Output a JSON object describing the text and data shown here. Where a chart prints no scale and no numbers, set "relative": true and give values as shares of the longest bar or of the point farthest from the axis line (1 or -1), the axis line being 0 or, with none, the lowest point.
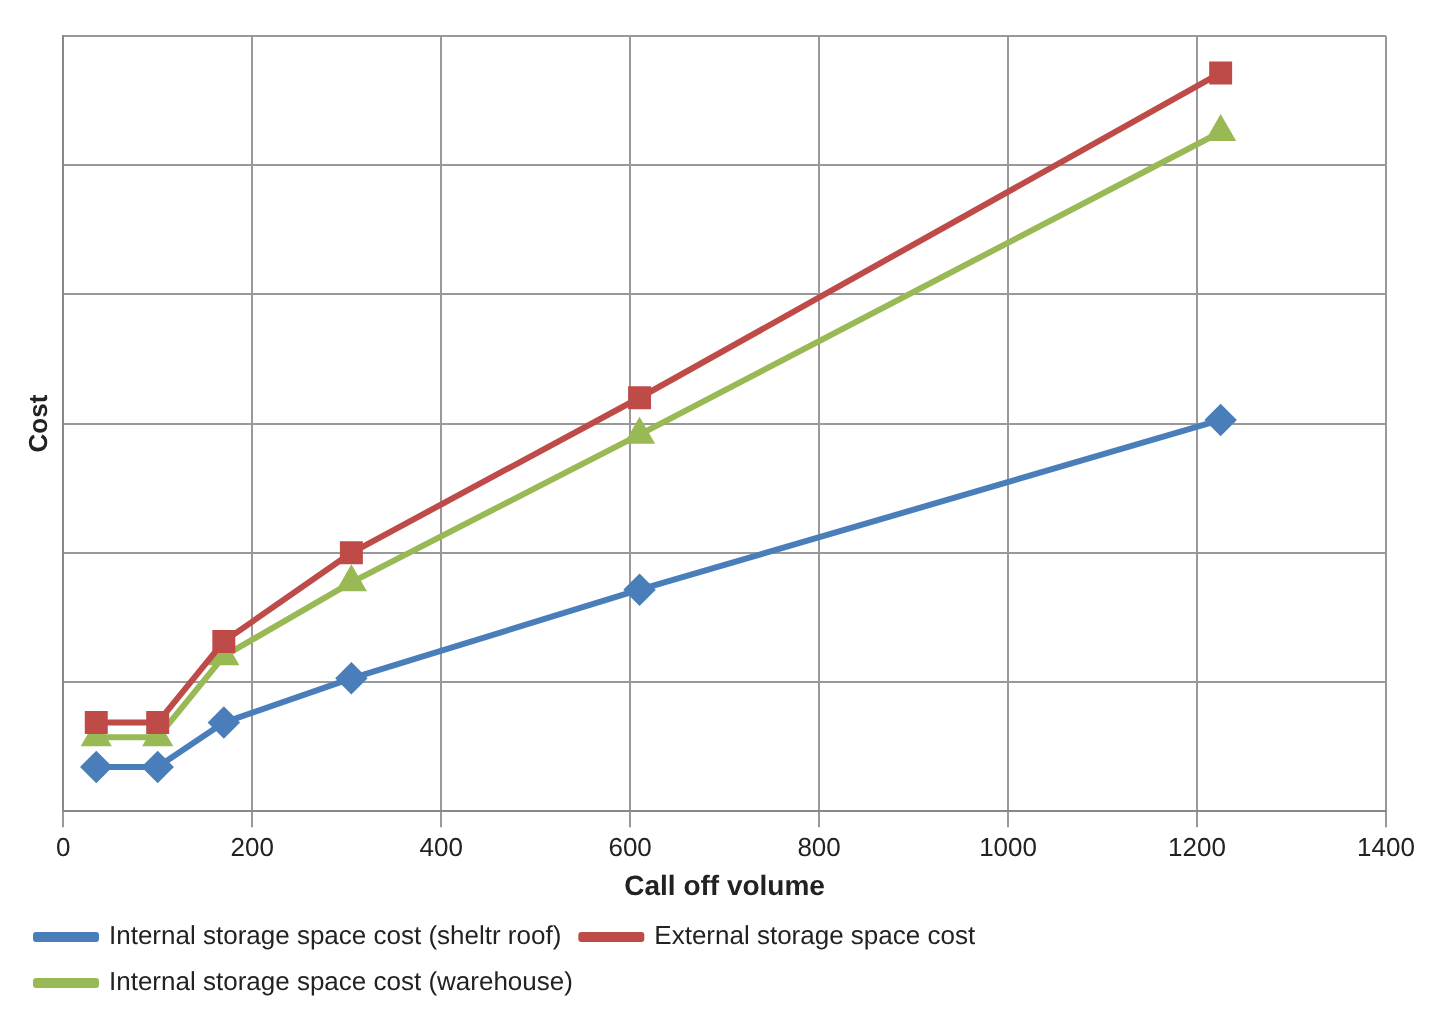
{
  "chart_data": {
    "type": "line",
    "relative": true,
    "xlabel": "Call off volume",
    "ylabel": "Cost",
    "x": [
      35,
      100,
      170,
      305,
      610,
      1225
    ],
    "xlim": [
      0,
      1400
    ],
    "xticks": [
      0,
      200,
      400,
      600,
      800,
      1000,
      1200,
      1400
    ],
    "grid": true,
    "legend": "bottom",
    "series": [
      {
        "name": "Internal storage space cost (sheltr roof)",
        "color": "#4a7ebb",
        "marker": "diamond",
        "values": [
          0.06,
          0.06,
          0.12,
          0.18,
          0.3,
          0.53
        ]
      },
      {
        "name": "External storage space cost",
        "color": "#be4b48",
        "marker": "square",
        "values": [
          0.12,
          0.12,
          0.23,
          0.35,
          0.56,
          1
        ]
      },
      {
        "name": "Internal storage space cost (warehouse)",
        "color": "#98b954",
        "marker": "triangle",
        "values": [
          0.1,
          0.1,
          0.21,
          0.31,
          0.51,
          0.92
        ]
      }
    ]
  }
}
